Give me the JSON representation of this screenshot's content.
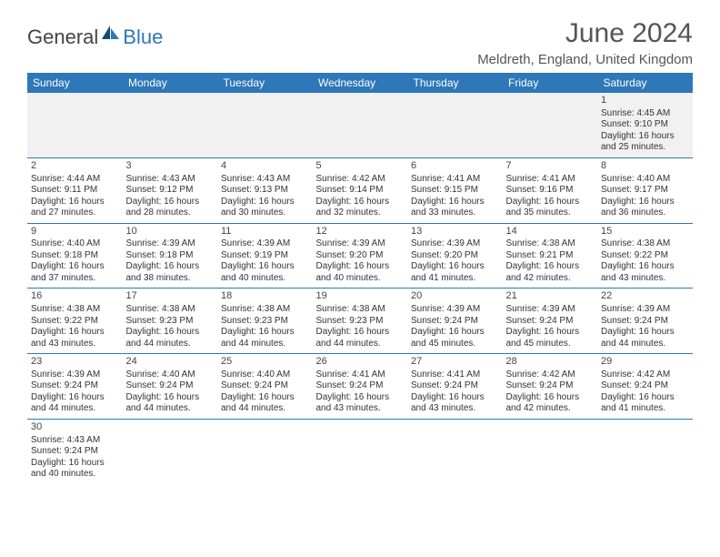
{
  "logo": {
    "text1": "General",
    "text2": "Blue"
  },
  "title": "June 2024",
  "subtitle": "Meldreth, England, United Kingdom",
  "colors": {
    "header_bg": "#2e77b8",
    "header_text": "#ffffff",
    "rule": "#2e77b8",
    "alt_row_bg": "#f1f1f1"
  },
  "dayHeaders": [
    "Sunday",
    "Monday",
    "Tuesday",
    "Wednesday",
    "Thursday",
    "Friday",
    "Saturday"
  ],
  "weeks": [
    [
      null,
      null,
      null,
      null,
      null,
      null,
      {
        "n": "1",
        "sr": "Sunrise: 4:45 AM",
        "ss": "Sunset: 9:10 PM",
        "d1": "Daylight: 16 hours",
        "d2": "and 25 minutes."
      }
    ],
    [
      {
        "n": "2",
        "sr": "Sunrise: 4:44 AM",
        "ss": "Sunset: 9:11 PM",
        "d1": "Daylight: 16 hours",
        "d2": "and 27 minutes."
      },
      {
        "n": "3",
        "sr": "Sunrise: 4:43 AM",
        "ss": "Sunset: 9:12 PM",
        "d1": "Daylight: 16 hours",
        "d2": "and 28 minutes."
      },
      {
        "n": "4",
        "sr": "Sunrise: 4:43 AM",
        "ss": "Sunset: 9:13 PM",
        "d1": "Daylight: 16 hours",
        "d2": "and 30 minutes."
      },
      {
        "n": "5",
        "sr": "Sunrise: 4:42 AM",
        "ss": "Sunset: 9:14 PM",
        "d1": "Daylight: 16 hours",
        "d2": "and 32 minutes."
      },
      {
        "n": "6",
        "sr": "Sunrise: 4:41 AM",
        "ss": "Sunset: 9:15 PM",
        "d1": "Daylight: 16 hours",
        "d2": "and 33 minutes."
      },
      {
        "n": "7",
        "sr": "Sunrise: 4:41 AM",
        "ss": "Sunset: 9:16 PM",
        "d1": "Daylight: 16 hours",
        "d2": "and 35 minutes."
      },
      {
        "n": "8",
        "sr": "Sunrise: 4:40 AM",
        "ss": "Sunset: 9:17 PM",
        "d1": "Daylight: 16 hours",
        "d2": "and 36 minutes."
      }
    ],
    [
      {
        "n": "9",
        "sr": "Sunrise: 4:40 AM",
        "ss": "Sunset: 9:18 PM",
        "d1": "Daylight: 16 hours",
        "d2": "and 37 minutes."
      },
      {
        "n": "10",
        "sr": "Sunrise: 4:39 AM",
        "ss": "Sunset: 9:18 PM",
        "d1": "Daylight: 16 hours",
        "d2": "and 38 minutes."
      },
      {
        "n": "11",
        "sr": "Sunrise: 4:39 AM",
        "ss": "Sunset: 9:19 PM",
        "d1": "Daylight: 16 hours",
        "d2": "and 40 minutes."
      },
      {
        "n": "12",
        "sr": "Sunrise: 4:39 AM",
        "ss": "Sunset: 9:20 PM",
        "d1": "Daylight: 16 hours",
        "d2": "and 40 minutes."
      },
      {
        "n": "13",
        "sr": "Sunrise: 4:39 AM",
        "ss": "Sunset: 9:20 PM",
        "d1": "Daylight: 16 hours",
        "d2": "and 41 minutes."
      },
      {
        "n": "14",
        "sr": "Sunrise: 4:38 AM",
        "ss": "Sunset: 9:21 PM",
        "d1": "Daylight: 16 hours",
        "d2": "and 42 minutes."
      },
      {
        "n": "15",
        "sr": "Sunrise: 4:38 AM",
        "ss": "Sunset: 9:22 PM",
        "d1": "Daylight: 16 hours",
        "d2": "and 43 minutes."
      }
    ],
    [
      {
        "n": "16",
        "sr": "Sunrise: 4:38 AM",
        "ss": "Sunset: 9:22 PM",
        "d1": "Daylight: 16 hours",
        "d2": "and 43 minutes."
      },
      {
        "n": "17",
        "sr": "Sunrise: 4:38 AM",
        "ss": "Sunset: 9:23 PM",
        "d1": "Daylight: 16 hours",
        "d2": "and 44 minutes."
      },
      {
        "n": "18",
        "sr": "Sunrise: 4:38 AM",
        "ss": "Sunset: 9:23 PM",
        "d1": "Daylight: 16 hours",
        "d2": "and 44 minutes."
      },
      {
        "n": "19",
        "sr": "Sunrise: 4:38 AM",
        "ss": "Sunset: 9:23 PM",
        "d1": "Daylight: 16 hours",
        "d2": "and 44 minutes."
      },
      {
        "n": "20",
        "sr": "Sunrise: 4:39 AM",
        "ss": "Sunset: 9:24 PM",
        "d1": "Daylight: 16 hours",
        "d2": "and 45 minutes."
      },
      {
        "n": "21",
        "sr": "Sunrise: 4:39 AM",
        "ss": "Sunset: 9:24 PM",
        "d1": "Daylight: 16 hours",
        "d2": "and 45 minutes."
      },
      {
        "n": "22",
        "sr": "Sunrise: 4:39 AM",
        "ss": "Sunset: 9:24 PM",
        "d1": "Daylight: 16 hours",
        "d2": "and 44 minutes."
      }
    ],
    [
      {
        "n": "23",
        "sr": "Sunrise: 4:39 AM",
        "ss": "Sunset: 9:24 PM",
        "d1": "Daylight: 16 hours",
        "d2": "and 44 minutes."
      },
      {
        "n": "24",
        "sr": "Sunrise: 4:40 AM",
        "ss": "Sunset: 9:24 PM",
        "d1": "Daylight: 16 hours",
        "d2": "and 44 minutes."
      },
      {
        "n": "25",
        "sr": "Sunrise: 4:40 AM",
        "ss": "Sunset: 9:24 PM",
        "d1": "Daylight: 16 hours",
        "d2": "and 44 minutes."
      },
      {
        "n": "26",
        "sr": "Sunrise: 4:41 AM",
        "ss": "Sunset: 9:24 PM",
        "d1": "Daylight: 16 hours",
        "d2": "and 43 minutes."
      },
      {
        "n": "27",
        "sr": "Sunrise: 4:41 AM",
        "ss": "Sunset: 9:24 PM",
        "d1": "Daylight: 16 hours",
        "d2": "and 43 minutes."
      },
      {
        "n": "28",
        "sr": "Sunrise: 4:42 AM",
        "ss": "Sunset: 9:24 PM",
        "d1": "Daylight: 16 hours",
        "d2": "and 42 minutes."
      },
      {
        "n": "29",
        "sr": "Sunrise: 4:42 AM",
        "ss": "Sunset: 9:24 PM",
        "d1": "Daylight: 16 hours",
        "d2": "and 41 minutes."
      }
    ],
    [
      {
        "n": "30",
        "sr": "Sunrise: 4:43 AM",
        "ss": "Sunset: 9:24 PM",
        "d1": "Daylight: 16 hours",
        "d2": "and 40 minutes."
      },
      null,
      null,
      null,
      null,
      null,
      null
    ]
  ]
}
